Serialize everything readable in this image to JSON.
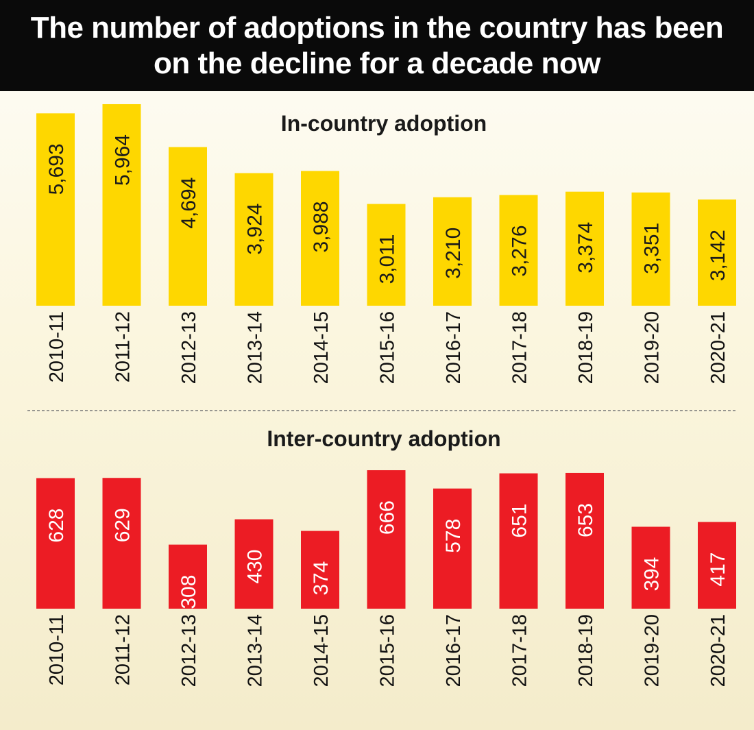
{
  "headline": "The number of adoptions in the country has been on the decline for a decade now",
  "colors": {
    "in_country": "#fed700",
    "inter_country": "#ec1c24",
    "in_label": "#1a1a1a",
    "inter_label": "#ffffff",
    "divider": "#777777"
  },
  "chart_data": [
    {
      "type": "bar",
      "title": "In-country adoption",
      "categories": [
        "2010-11",
        "2011-12",
        "2012-13",
        "2013-14",
        "2014-15",
        "2015-16",
        "2016-17",
        "2017-18",
        "2018-19",
        "2019-20",
        "2020-21"
      ],
      "values": [
        5693,
        5964,
        4694,
        3924,
        3988,
        3011,
        3210,
        3276,
        3374,
        3351,
        3142
      ],
      "value_labels": [
        "5,693",
        "5,964",
        "4,694",
        "3,924",
        "3,988",
        "3,011",
        "3,210",
        "3,276",
        "3,374",
        "3,351",
        "3,142"
      ],
      "xlabel": "",
      "ylabel": "",
      "ylim": [
        0,
        6000
      ],
      "grid": false
    },
    {
      "type": "bar",
      "title": "Inter-country adoption",
      "categories": [
        "2010-11",
        "2011-12",
        "2012-13",
        "2013-14",
        "2014-15",
        "2015-16",
        "2016-17",
        "2017-18",
        "2018-19",
        "2019-20",
        "2020-21"
      ],
      "values": [
        628,
        629,
        308,
        430,
        374,
        666,
        578,
        651,
        653,
        394,
        417
      ],
      "value_labels": [
        "628",
        "629",
        "308",
        "430",
        "374",
        "666",
        "578",
        "651",
        "653",
        "394",
        "417"
      ],
      "xlabel": "",
      "ylabel": "",
      "ylim": [
        0,
        680
      ],
      "grid": false
    }
  ]
}
